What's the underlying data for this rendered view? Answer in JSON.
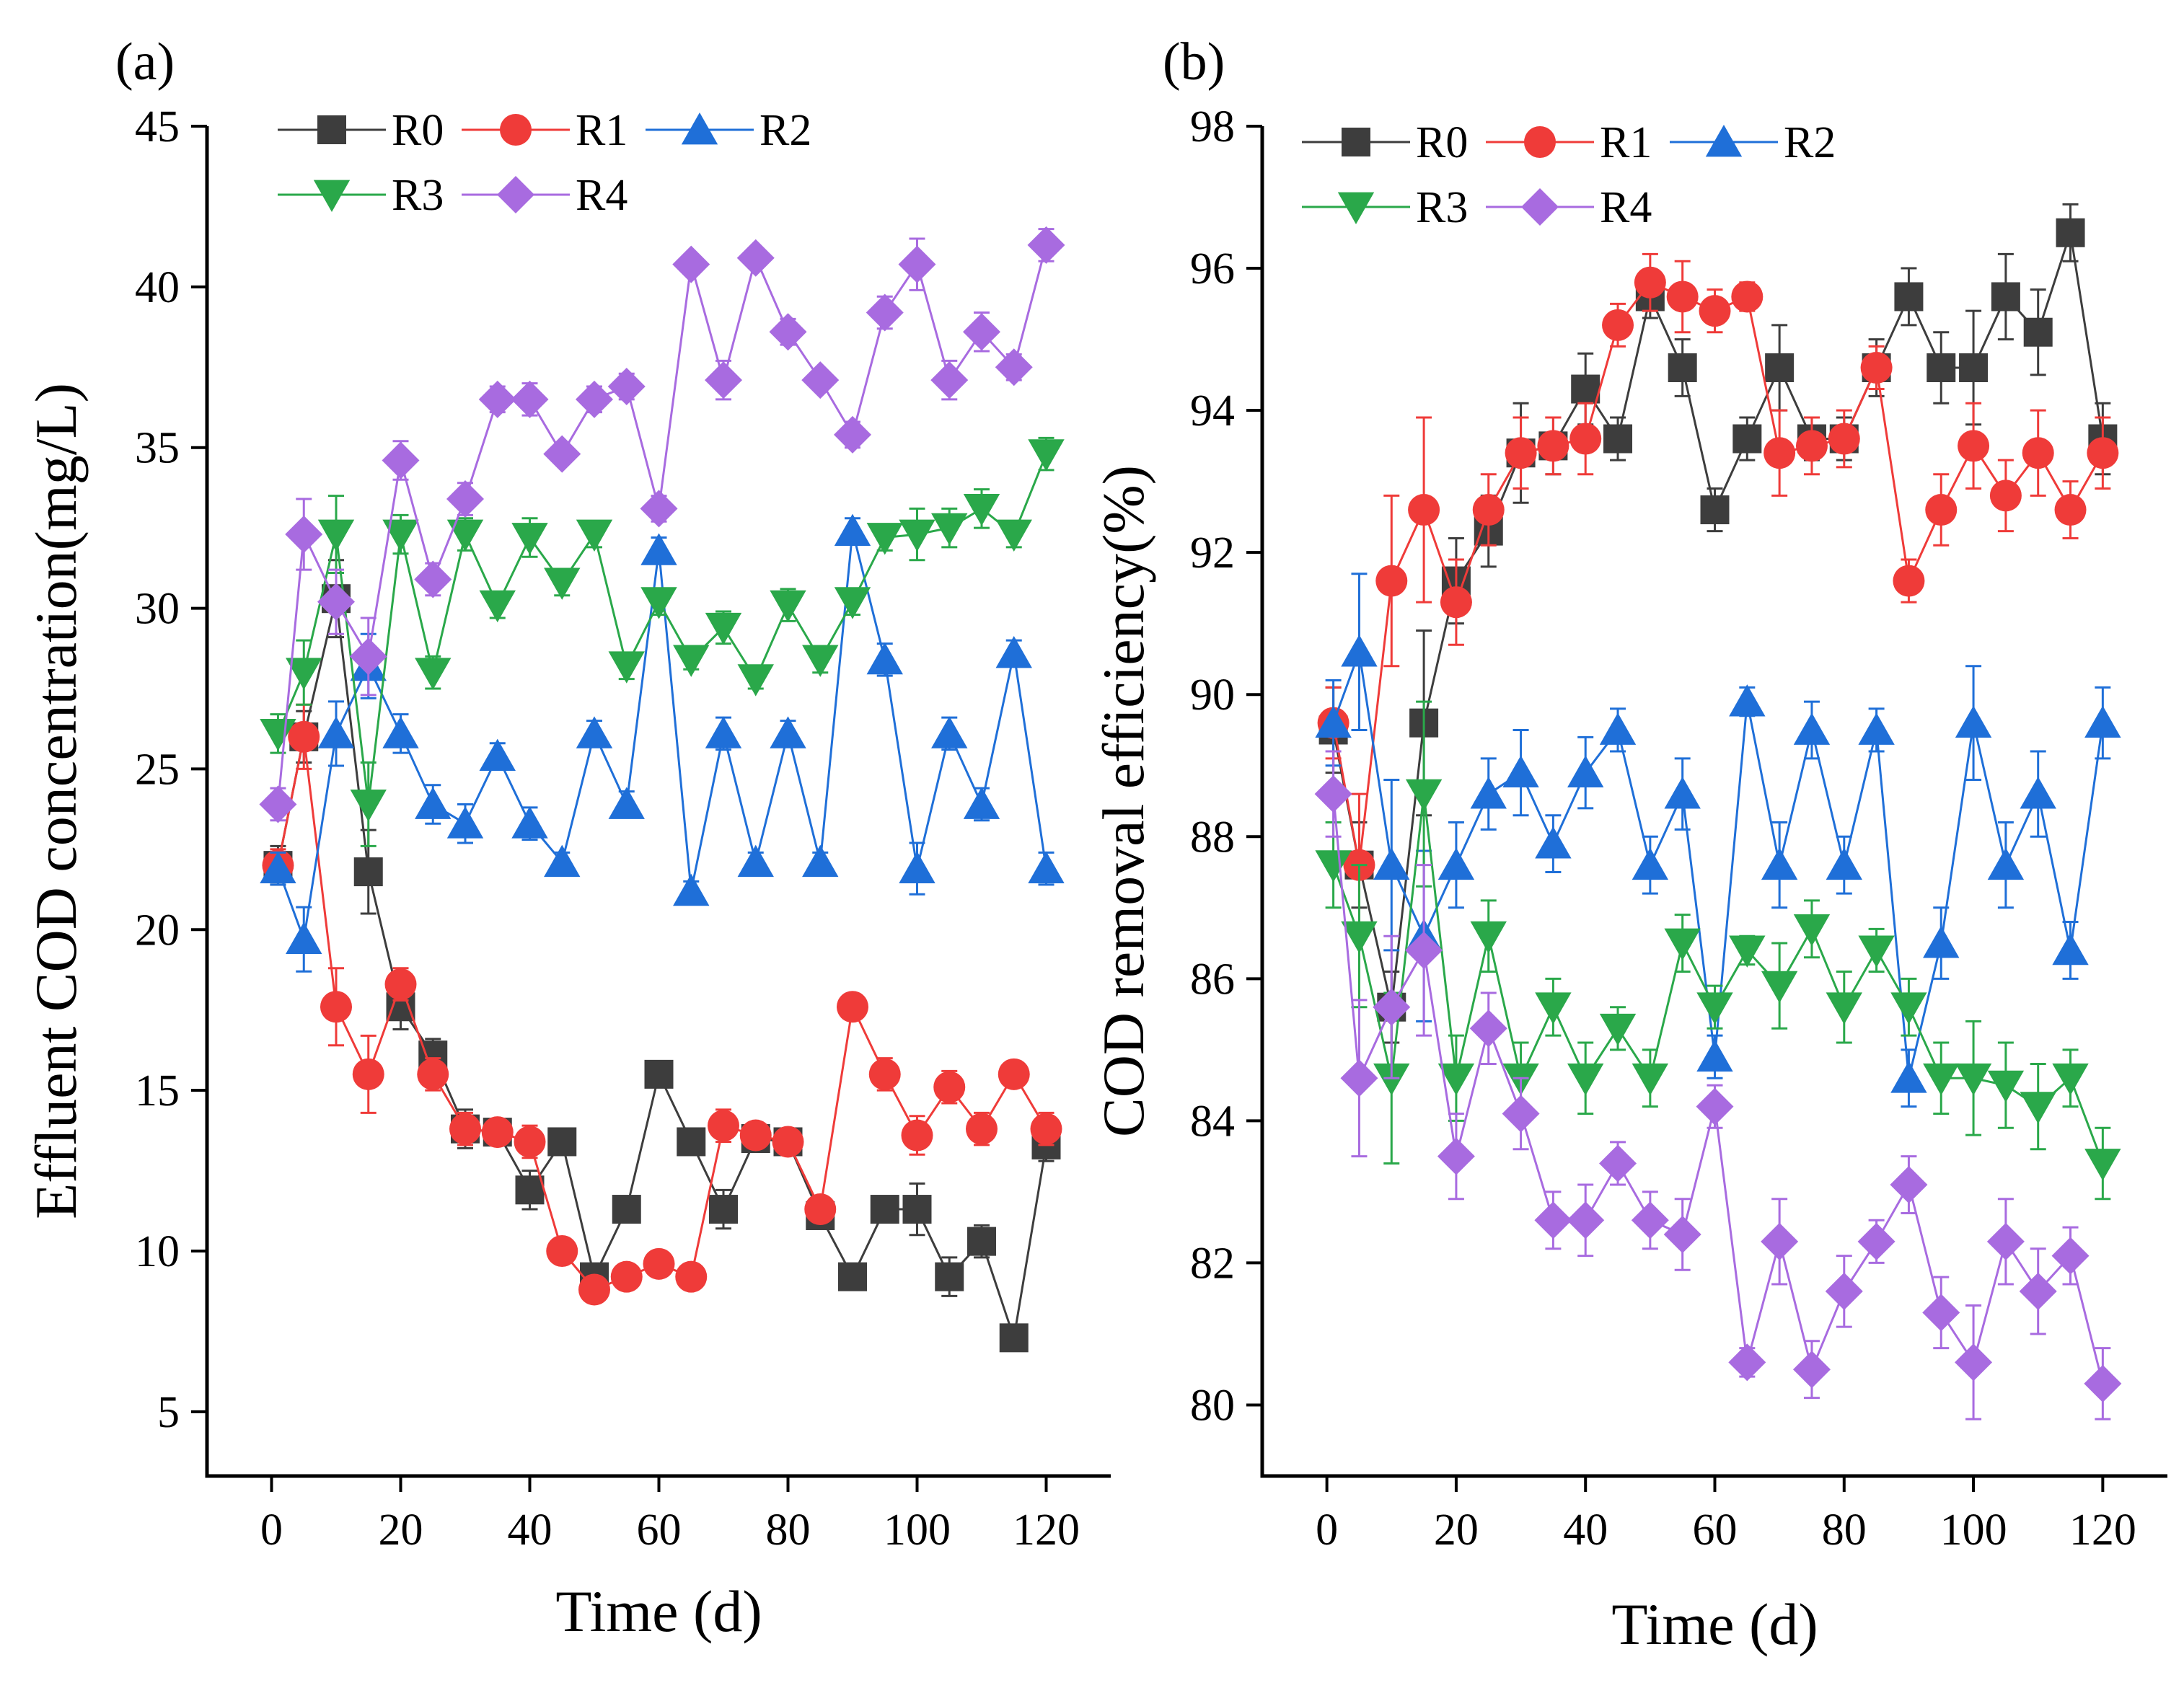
{
  "figure": {
    "title": ""
  },
  "chart_data": [
    {
      "type": "line",
      "panel_label": "(a)",
      "title": "",
      "xlabel": "Time (d)",
      "ylabel": "Effluent COD concentration(mg/L)",
      "xlim": [
        -10,
        130
      ],
      "ylim": [
        3,
        45
      ],
      "xticks": [
        0,
        20,
        40,
        60,
        80,
        100,
        120
      ],
      "yticks": [
        5,
        10,
        15,
        20,
        25,
        30,
        35,
        40,
        45
      ],
      "legend_position": "top-left",
      "x": [
        1,
        5,
        10,
        15,
        20,
        25,
        30,
        35,
        40,
        45,
        50,
        55,
        60,
        65,
        70,
        75,
        80,
        85,
        90,
        95,
        100,
        105,
        110,
        115,
        120
      ],
      "series": [
        {
          "name": "R0",
          "color": "#3d3d3d",
          "marker": "square",
          "values": [
            22.0,
            26.0,
            30.3,
            21.8,
            17.6,
            16.1,
            13.8,
            13.7,
            11.9,
            13.4,
            9.2,
            11.3,
            15.5,
            13.4,
            11.3,
            13.5,
            13.4,
            11.1,
            9.2,
            11.3,
            11.3,
            9.2,
            10.3,
            7.3,
            13.3
          ],
          "errors": [
            0.6,
            0.8,
            1.2,
            1.3,
            0.7,
            0.5,
            0.6,
            0.4,
            0.6,
            0.3,
            0.4,
            0.4,
            0.3,
            0.3,
            0.6,
            0.3,
            0.3,
            0.4,
            0.3,
            0.3,
            0.8,
            0.6,
            0.5,
            0.3,
            0.5
          ]
        },
        {
          "name": "R1",
          "color": "#ef3b39",
          "marker": "circle",
          "values": [
            22.0,
            26.0,
            17.6,
            15.5,
            18.3,
            15.5,
            13.8,
            13.7,
            13.4,
            10.0,
            8.8,
            9.2,
            9.6,
            9.2,
            13.9,
            13.6,
            13.4,
            11.3,
            17.6,
            15.5,
            13.6,
            15.1,
            13.8,
            15.5,
            13.8
          ],
          "errors": [
            0.5,
            1.0,
            1.2,
            1.2,
            0.5,
            0.5,
            0.5,
            0.3,
            0.5,
            0.3,
            0.3,
            0.3,
            0.3,
            0.3,
            0.5,
            0.3,
            0.3,
            0.3,
            0.3,
            0.5,
            0.6,
            0.5,
            0.5,
            0.4,
            0.5
          ]
        },
        {
          "name": "R2",
          "color": "#1f6fd8",
          "marker": "triangle-up",
          "values": [
            21.9,
            19.7,
            26.1,
            28.2,
            26.1,
            23.9,
            23.3,
            25.4,
            23.3,
            22.1,
            26.1,
            23.9,
            31.8,
            21.2,
            26.1,
            22.1,
            26.1,
            22.1,
            32.4,
            28.4,
            21.9,
            26.1,
            23.9,
            28.6,
            21.9
          ],
          "errors": [
            0.5,
            1.0,
            1.0,
            1.0,
            0.6,
            0.6,
            0.6,
            0.4,
            0.5,
            0.3,
            0.4,
            0.4,
            0.4,
            0.3,
            0.5,
            0.3,
            0.4,
            0.3,
            0.4,
            0.5,
            0.8,
            0.5,
            0.5,
            0.4,
            0.5
          ]
        },
        {
          "name": "R3",
          "color": "#2aa84a",
          "marker": "triangle-down",
          "values": [
            26.1,
            28.0,
            32.3,
            23.9,
            32.3,
            28.0,
            32.3,
            30.1,
            32.2,
            30.8,
            32.3,
            28.2,
            30.2,
            28.4,
            29.4,
            27.8,
            30.1,
            28.4,
            30.2,
            32.2,
            32.3,
            32.5,
            33.1,
            32.3,
            34.8
          ],
          "errors": [
            0.6,
            1.0,
            1.2,
            1.3,
            0.6,
            0.5,
            0.5,
            0.4,
            0.6,
            0.4,
            0.4,
            0.4,
            0.4,
            0.3,
            0.5,
            0.3,
            0.5,
            0.4,
            0.4,
            0.4,
            0.8,
            0.6,
            0.6,
            0.4,
            0.5
          ]
        },
        {
          "name": "R4",
          "color": "#a86be0",
          "marker": "diamond",
          "values": [
            23.9,
            32.3,
            30.2,
            28.5,
            34.6,
            30.9,
            33.4,
            36.5,
            36.5,
            34.8,
            36.5,
            36.9,
            33.1,
            40.7,
            37.1,
            40.9,
            38.6,
            37.1,
            35.4,
            39.2,
            40.7,
            37.1,
            38.6,
            37.5,
            41.3
          ],
          "errors": [
            0.5,
            1.1,
            1.0,
            1.2,
            0.6,
            0.5,
            0.5,
            0.4,
            0.5,
            0.3,
            0.4,
            0.4,
            0.4,
            0.3,
            0.6,
            0.3,
            0.4,
            0.3,
            0.4,
            0.5,
            0.8,
            0.6,
            0.6,
            0.4,
            0.5
          ]
        }
      ]
    },
    {
      "type": "line",
      "panel_label": "(b)",
      "title": "",
      "xlabel": "Time (d)",
      "ylabel": "COD removal efficiency(%)",
      "xlim": [
        -10,
        130
      ],
      "ylim": [
        79,
        98
      ],
      "xticks": [
        0,
        20,
        40,
        60,
        80,
        100,
        120
      ],
      "yticks": [
        80,
        82,
        84,
        86,
        88,
        90,
        92,
        94,
        96,
        98
      ],
      "legend_position": "top-left",
      "x": [
        1,
        5,
        10,
        15,
        20,
        25,
        30,
        35,
        40,
        45,
        50,
        55,
        60,
        65,
        70,
        75,
        80,
        85,
        90,
        95,
        100,
        105,
        110,
        115,
        120
      ],
      "series": [
        {
          "name": "R0",
          "color": "#3d3d3d",
          "marker": "square",
          "values": [
            89.5,
            87.6,
            85.6,
            89.6,
            91.6,
            92.3,
            93.4,
            93.5,
            94.3,
            93.6,
            95.6,
            94.6,
            92.6,
            93.6,
            94.6,
            93.6,
            93.6,
            94.6,
            95.6,
            94.6,
            94.6,
            95.6,
            95.1,
            96.5,
            93.6
          ],
          "errors": [
            0.6,
            0.6,
            0.5,
            1.3,
            0.6,
            0.5,
            0.7,
            0.4,
            0.5,
            0.3,
            0.3,
            0.4,
            0.3,
            0.3,
            0.6,
            0.3,
            0.3,
            0.4,
            0.4,
            0.5,
            0.8,
            0.6,
            0.6,
            0.4,
            0.5
          ]
        },
        {
          "name": "R1",
          "color": "#ef3b39",
          "marker": "circle",
          "values": [
            89.6,
            87.6,
            91.6,
            92.6,
            91.3,
            92.6,
            93.4,
            93.5,
            93.6,
            95.2,
            95.8,
            95.6,
            95.4,
            95.6,
            93.4,
            93.5,
            93.6,
            94.6,
            91.6,
            92.6,
            93.5,
            92.8,
            93.4,
            92.6,
            93.4
          ],
          "errors": [
            0.5,
            1.0,
            1.2,
            1.3,
            0.6,
            0.5,
            0.5,
            0.4,
            0.5,
            0.3,
            0.4,
            0.5,
            0.3,
            0.2,
            0.6,
            0.4,
            0.4,
            0.3,
            0.3,
            0.5,
            0.6,
            0.5,
            0.6,
            0.4,
            0.5
          ]
        },
        {
          "name": "R2",
          "color": "#1f6fd8",
          "marker": "triangle-up",
          "values": [
            89.6,
            90.6,
            87.6,
            86.6,
            87.6,
            88.6,
            88.9,
            87.9,
            88.9,
            89.5,
            87.6,
            88.6,
            84.9,
            89.9,
            87.6,
            89.5,
            87.6,
            89.5,
            84.6,
            86.5,
            89.6,
            87.6,
            88.6,
            86.4,
            89.6
          ],
          "errors": [
            0.6,
            1.1,
            1.2,
            1.2,
            0.6,
            0.5,
            0.6,
            0.4,
            0.5,
            0.3,
            0.4,
            0.5,
            0.3,
            0.2,
            0.6,
            0.4,
            0.4,
            0.3,
            0.4,
            0.5,
            0.8,
            0.6,
            0.6,
            0.4,
            0.5
          ]
        },
        {
          "name": "R3",
          "color": "#2aa84a",
          "marker": "triangle-down",
          "values": [
            87.6,
            86.6,
            84.6,
            88.6,
            84.6,
            86.6,
            84.6,
            85.6,
            84.6,
            85.3,
            84.6,
            86.5,
            85.6,
            86.4,
            85.9,
            86.7,
            85.6,
            86.4,
            85.6,
            84.6,
            84.6,
            84.5,
            84.2,
            84.6,
            83.4
          ],
          "errors": [
            0.6,
            1.0,
            1.2,
            1.3,
            0.6,
            0.5,
            0.5,
            0.4,
            0.5,
            0.3,
            0.4,
            0.4,
            0.3,
            0.2,
            0.6,
            0.4,
            0.5,
            0.3,
            0.4,
            0.5,
            0.8,
            0.6,
            0.6,
            0.4,
            0.5
          ]
        },
        {
          "name": "R4",
          "color": "#a86be0",
          "marker": "diamond",
          "values": [
            88.6,
            84.6,
            85.6,
            86.4,
            83.5,
            85.3,
            84.1,
            82.6,
            82.6,
            83.4,
            82.6,
            82.4,
            84.2,
            80.6,
            82.3,
            80.5,
            81.6,
            82.3,
            83.1,
            81.3,
            80.6,
            82.3,
            81.6,
            82.1,
            80.3
          ],
          "errors": [
            0.6,
            1.1,
            1.0,
            1.2,
            0.6,
            0.5,
            0.5,
            0.4,
            0.5,
            0.3,
            0.4,
            0.5,
            0.3,
            0.2,
            0.6,
            0.4,
            0.5,
            0.3,
            0.4,
            0.5,
            0.8,
            0.6,
            0.6,
            0.4,
            0.5
          ]
        }
      ]
    }
  ]
}
